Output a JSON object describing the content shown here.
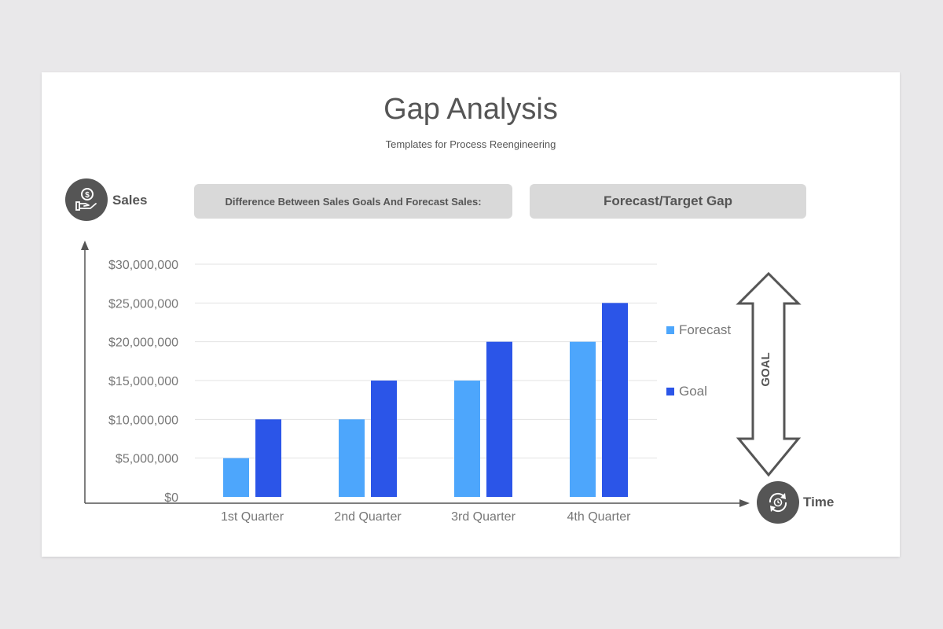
{
  "slide": {
    "title": "Gap Analysis",
    "subtitle": "Templates for Process Reengineering",
    "difference_label": "Difference Between Sales Goals And Forecast Sales:",
    "gap_label": "Forecast/Target Gap",
    "sales_axis_label": "Sales",
    "time_axis_label": "Time",
    "goal_arrow_label": "GOAL",
    "icons": {
      "sales": "money-hand-icon",
      "time": "clock-cycle-icon"
    }
  },
  "colors": {
    "forecast": "#4da6fc",
    "goal": "#2b55e8",
    "text": "#555555",
    "pill": "#d9d9d9"
  },
  "chart_data": {
    "type": "bar",
    "categories": [
      "1st Quarter",
      "2nd Quarter",
      "3rd Quarter",
      "4th Quarter"
    ],
    "series": [
      {
        "name": "Forecast",
        "values": [
          5000000,
          10000000,
          15000000,
          20000000
        ]
      },
      {
        "name": "Goal",
        "values": [
          10000000,
          15000000,
          20000000,
          25000000
        ]
      }
    ],
    "yticks": [
      "$0",
      "$5,000,000",
      "$10,000,000",
      "$15,000,000",
      "$20,000,000",
      "$25,000,000",
      "$30,000,000"
    ],
    "ytick_values": [
      0,
      5000000,
      10000000,
      15000000,
      20000000,
      25000000,
      30000000
    ],
    "ylim": [
      0,
      30000000
    ],
    "grid": true,
    "legend": "right"
  }
}
